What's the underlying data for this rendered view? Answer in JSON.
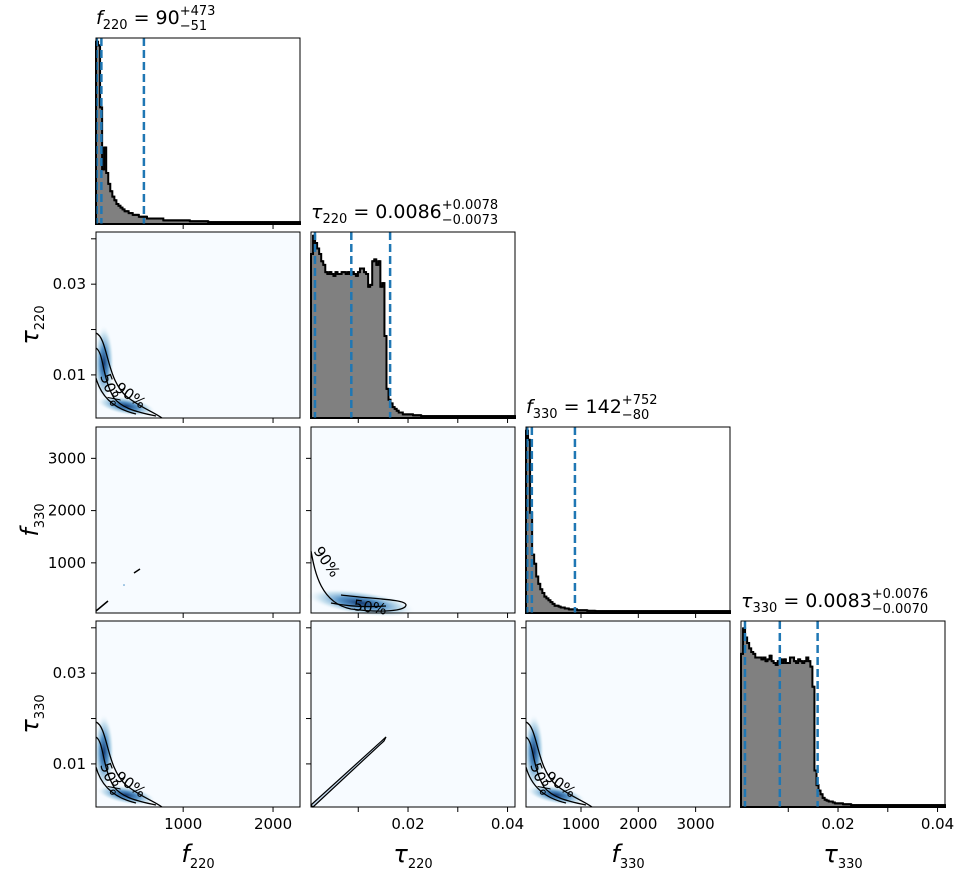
{
  "colors": {
    "hist_fill": "#808080",
    "hist_edge": "#000000",
    "quantile_line": "#1f77b4",
    "density_low": "#f7fbff",
    "density_high": "#08306b",
    "contour": "#000000"
  },
  "chart_data": {
    "type": "corner",
    "parameters": [
      {
        "key": "f220",
        "axis_symbol": "f",
        "axis_subscript": "220",
        "title_symbol": "f",
        "title_subscript": "220",
        "title_value": "90",
        "title_plus": "+473",
        "title_minus": "−51",
        "range": [
          30,
          2300
        ],
        "ticks": [
          1000,
          2000
        ],
        "tick_labels": [
          "1000",
          "2000"
        ],
        "quantiles": [
          39,
          90,
          563
        ]
      },
      {
        "key": "tau220",
        "axis_symbol": "τ",
        "axis_subscript": "220",
        "title_symbol": "τ",
        "title_subscript": "220",
        "title_value": "0.0086",
        "title_plus": "+0.0078",
        "title_minus": "−0.0073",
        "range": [
          0.0005,
          0.0415
        ],
        "ticks": [
          0.01,
          0.02,
          0.03,
          0.04
        ],
        "tick_labels_x": [
          "",
          "0.02",
          "",
          "0.04"
        ],
        "tick_labels_y": [
          "0.01",
          "",
          "0.03",
          ""
        ],
        "quantiles": [
          0.0013,
          0.0086,
          0.0164
        ]
      },
      {
        "key": "f330",
        "axis_symbol": "f",
        "axis_subscript": "330",
        "title_symbol": "f",
        "title_subscript": "330",
        "title_value": "142",
        "title_plus": "+752",
        "title_minus": "−80",
        "range": [
          40,
          3600
        ],
        "ticks": [
          1000,
          2000,
          3000
        ],
        "tick_labels": [
          "1000",
          "2000",
          "3000"
        ],
        "quantiles": [
          62,
          142,
          894
        ]
      },
      {
        "key": "tau330",
        "axis_symbol": "τ",
        "axis_subscript": "330",
        "title_symbol": "τ",
        "title_subscript": "330",
        "title_value": "0.0083",
        "title_plus": "+0.0076",
        "title_minus": "−0.0070",
        "range": [
          0.0005,
          0.0415
        ],
        "ticks": [
          0.01,
          0.02,
          0.03,
          0.04
        ],
        "tick_labels_x": [
          "",
          "0.02",
          "",
          "0.04"
        ],
        "tick_labels_y": [
          "0.01",
          "",
          "0.03",
          ""
        ],
        "quantiles": [
          0.0013,
          0.0083,
          0.0159
        ]
      }
    ],
    "histograms": [
      {
        "key": "f220",
        "bin_start": 30,
        "bin_width": 22.7,
        "heights": [
          1.0,
          0.98,
          0.64,
          0.3,
          0.42,
          0.28,
          0.22,
          0.18,
          0.15,
          0.13,
          0.11,
          0.1,
          0.09,
          0.08,
          0.07,
          0.07,
          0.06,
          0.06,
          0.05,
          0.05,
          0.05,
          0.04,
          0.04,
          0.04,
          0.04,
          0.03,
          0.03,
          0.03,
          0.03,
          0.03,
          0.03,
          0.03,
          0.03,
          0.02,
          0.02,
          0.02,
          0.02,
          0.02,
          0.02,
          0.02,
          0.02,
          0.02,
          0.02,
          0.02,
          0.02,
          0.02,
          0.015,
          0.015,
          0.015,
          0.015,
          0.015,
          0.015,
          0.015,
          0.015,
          0.015,
          0.01,
          0.01,
          0.01,
          0.01,
          0.01,
          0.01,
          0.01,
          0.01,
          0.01,
          0.01,
          0.01,
          0.01,
          0.01,
          0.01,
          0.01,
          0.01,
          0.01,
          0.01,
          0.01,
          0.01,
          0.01,
          0.01,
          0.01,
          0.01,
          0.01,
          0.01,
          0.01,
          0.01,
          0.01,
          0.01,
          0.01,
          0.01,
          0.01,
          0.01,
          0.01,
          0.01,
          0.01,
          0.01,
          0.01,
          0.01,
          0.01,
          0.01,
          0.01,
          0.01,
          0.01
        ]
      },
      {
        "key": "tau220",
        "bin_start": 0.0005,
        "bin_width": 0.00041,
        "heights": [
          0.9,
          1.0,
          0.96,
          0.93,
          0.9,
          0.86,
          0.84,
          0.8,
          0.79,
          0.8,
          0.79,
          0.78,
          0.8,
          0.79,
          0.79,
          0.8,
          0.8,
          0.79,
          0.8,
          0.79,
          0.8,
          0.79,
          0.78,
          0.8,
          0.82,
          0.82,
          0.8,
          0.79,
          0.72,
          0.73,
          0.86,
          0.87,
          0.84,
          0.86,
          0.72,
          0.74,
          0.45,
          0.16,
          0.1,
          0.08,
          0.06,
          0.05,
          0.04,
          0.03,
          0.03,
          0.02,
          0.02,
          0.02,
          0.02,
          0.02,
          0.015,
          0.015,
          0.015,
          0.015,
          0.01,
          0.01,
          0.01,
          0.01,
          0.01,
          0.01,
          0.01,
          0.01,
          0.01,
          0.01,
          0.01,
          0.01,
          0.01,
          0.01,
          0.01,
          0.01,
          0.01,
          0.01,
          0.01,
          0.01,
          0.01,
          0.01,
          0.01,
          0.01,
          0.01,
          0.01,
          0.01,
          0.01,
          0.01,
          0.01,
          0.01,
          0.01,
          0.01,
          0.01,
          0.01,
          0.01,
          0.01,
          0.01,
          0.01,
          0.01,
          0.01,
          0.01,
          0.01,
          0.01,
          0.01,
          0.01
        ]
      },
      {
        "key": "f330",
        "bin_start": 40,
        "bin_width": 35.6,
        "heights": [
          1.0,
          0.95,
          0.55,
          0.32,
          0.27,
          0.2,
          0.16,
          0.13,
          0.11,
          0.09,
          0.08,
          0.07,
          0.06,
          0.05,
          0.04,
          0.04,
          0.035,
          0.03,
          0.03,
          0.025,
          0.025,
          0.02,
          0.02,
          0.02,
          0.02,
          0.015,
          0.015,
          0.015,
          0.015,
          0.015,
          0.012,
          0.012,
          0.012,
          0.012,
          0.01,
          0.01,
          0.01,
          0.01,
          0.01,
          0.01,
          0.01,
          0.01,
          0.01,
          0.01,
          0.01,
          0.01,
          0.01,
          0.01,
          0.01,
          0.01,
          0.01,
          0.01,
          0.01,
          0.01,
          0.01,
          0.01,
          0.01,
          0.01,
          0.01,
          0.01,
          0.01,
          0.01,
          0.01,
          0.01,
          0.01,
          0.01,
          0.01,
          0.01,
          0.01,
          0.01,
          0.01,
          0.01,
          0.01,
          0.01,
          0.01,
          0.01,
          0.01,
          0.01,
          0.01,
          0.01,
          0.01,
          0.01,
          0.01,
          0.01,
          0.01,
          0.01,
          0.01,
          0.01,
          0.01,
          0.01,
          0.01,
          0.01,
          0.01,
          0.01,
          0.01,
          0.01,
          0.01,
          0.01,
          0.01,
          0.01
        ]
      },
      {
        "key": "tau330",
        "bin_start": 0.0005,
        "bin_width": 0.00041,
        "heights": [
          0.84,
          0.98,
          0.93,
          0.9,
          0.87,
          0.85,
          0.84,
          0.82,
          0.82,
          0.82,
          0.81,
          0.82,
          0.8,
          0.81,
          0.83,
          0.8,
          0.79,
          0.78,
          0.8,
          0.81,
          0.79,
          0.81,
          0.79,
          0.79,
          0.82,
          0.82,
          0.8,
          0.79,
          0.81,
          0.8,
          0.79,
          0.8,
          0.82,
          0.8,
          0.77,
          0.66,
          0.2,
          0.12,
          0.09,
          0.07,
          0.05,
          0.04,
          0.035,
          0.03,
          0.03,
          0.025,
          0.02,
          0.02,
          0.02,
          0.02,
          0.015,
          0.015,
          0.015,
          0.015,
          0.01,
          0.01,
          0.01,
          0.01,
          0.01,
          0.01,
          0.01,
          0.01,
          0.01,
          0.01,
          0.01,
          0.01,
          0.01,
          0.01,
          0.01,
          0.01,
          0.01,
          0.01,
          0.01,
          0.01,
          0.01,
          0.01,
          0.01,
          0.01,
          0.01,
          0.01,
          0.01,
          0.01,
          0.01,
          0.01,
          0.01,
          0.01,
          0.01,
          0.01,
          0.01,
          0.01,
          0.01,
          0.01,
          0.01,
          0.01,
          0.01,
          0.01,
          0.01,
          0.01,
          0.01,
          0.01
        ]
      }
    ],
    "contour_labels": [
      "50%",
      "90%"
    ],
    "pairs": [
      {
        "x": "f220",
        "y": "tau220",
        "shape": "corner-band",
        "labels": [
          "50%",
          "90%"
        ]
      },
      {
        "x": "f220",
        "y": "f330",
        "shape": "diagonal-sparse",
        "labels": []
      },
      {
        "x": "tau220",
        "y": "f330",
        "shape": "bottom-band",
        "labels": [
          "90%",
          "50%"
        ]
      },
      {
        "x": "f220",
        "y": "tau330",
        "shape": "corner-band",
        "labels": [
          "50%",
          "90%"
        ]
      },
      {
        "x": "tau220",
        "y": "tau330",
        "shape": "diagonal-line",
        "labels": []
      },
      {
        "x": "f330",
        "y": "tau330",
        "shape": "corner-band",
        "labels": [
          "50%",
          "90%"
        ]
      }
    ]
  }
}
